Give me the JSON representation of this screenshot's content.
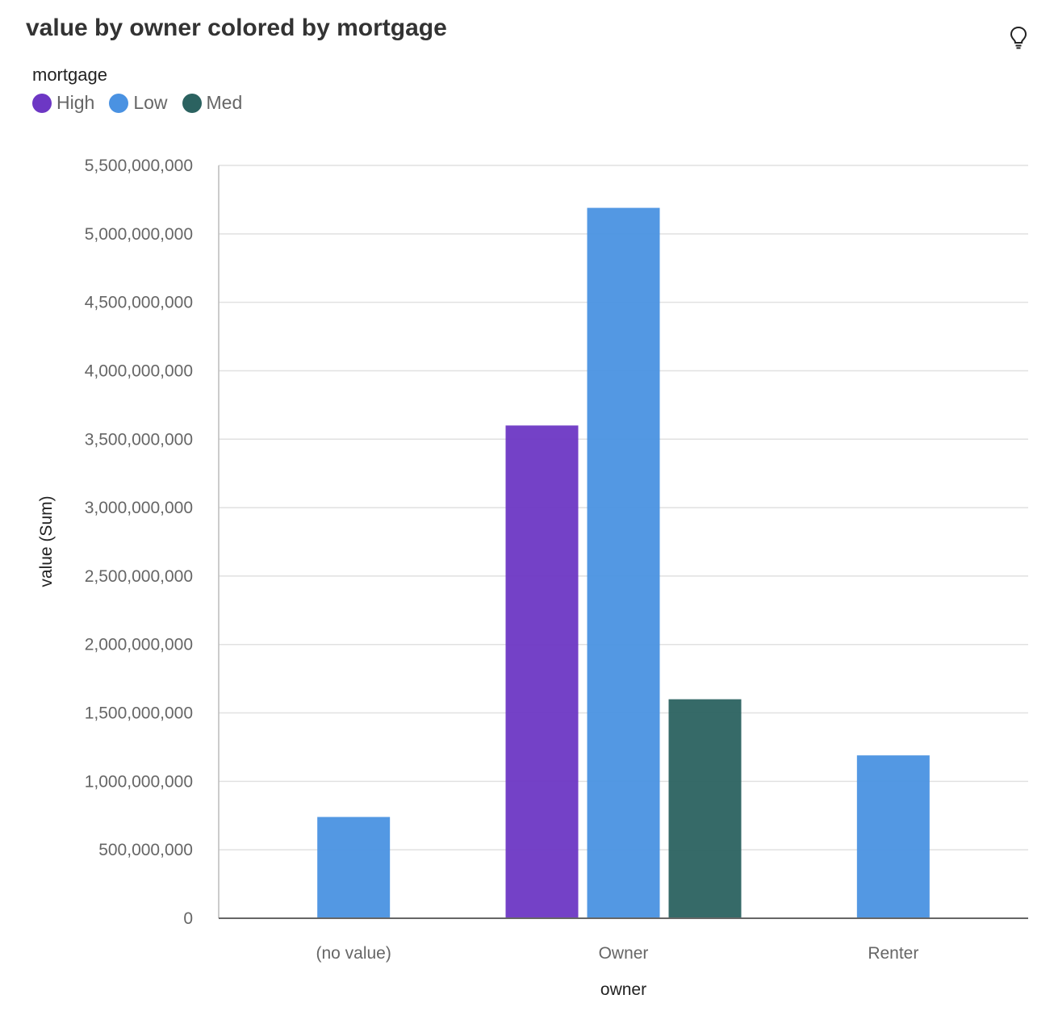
{
  "colors": {
    "High": "#6d37c4",
    "Low": "#4a92e2",
    "Med": "#2b6260"
  },
  "chart_data": {
    "type": "bar",
    "title": "value by owner colored by mortgage",
    "xlabel": "owner",
    "ylabel": "value (Sum)",
    "legend_title": "mortgage",
    "legend_position": "top-left",
    "grid": true,
    "categories": [
      "(no value)",
      "Owner",
      "Renter"
    ],
    "series": [
      {
        "name": "High",
        "values": [
          null,
          3600000000,
          null
        ]
      },
      {
        "name": "Low",
        "values": [
          740000000,
          5190000000,
          1190000000
        ]
      },
      {
        "name": "Med",
        "values": [
          null,
          1600000000,
          null
        ]
      }
    ],
    "ylim": [
      0,
      5500000000
    ],
    "yticks": [
      0,
      500000000,
      1000000000,
      1500000000,
      2000000000,
      2500000000,
      3000000000,
      3500000000,
      4000000000,
      4500000000,
      5000000000,
      5500000000
    ]
  }
}
